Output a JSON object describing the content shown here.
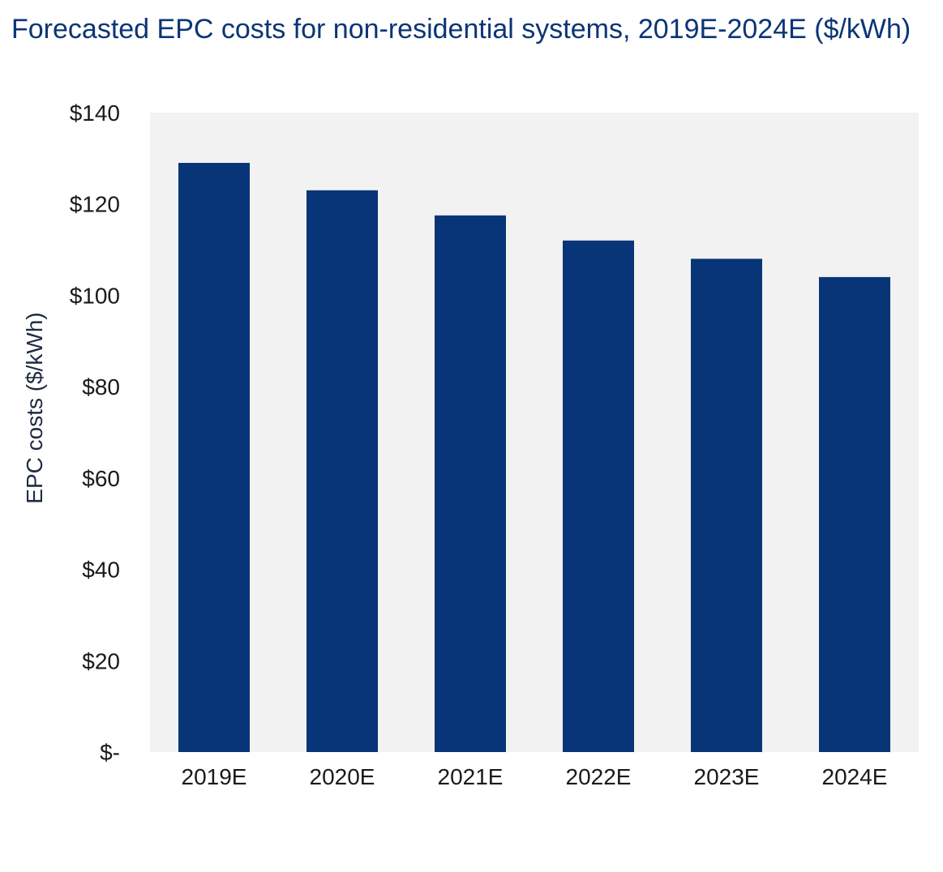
{
  "chart_data": {
    "type": "bar",
    "title": "Forecasted EPC costs for non-residential systems, 2019E-2024E ($/kWh)",
    "xlabel": "",
    "ylabel": "EPC costs ($/kWh)",
    "categories": [
      "2019E",
      "2020E",
      "2021E",
      "2022E",
      "2023E",
      "2024E"
    ],
    "values": [
      129,
      123,
      117.5,
      112,
      108,
      104
    ],
    "ylim": [
      0,
      140
    ],
    "yticks": [
      0,
      20,
      40,
      60,
      80,
      100,
      120,
      140
    ],
    "ytick_labels": [
      "$-",
      "$20",
      "$40",
      "$60",
      "$80",
      "$100",
      "$120",
      "$140"
    ],
    "grid": false,
    "legend": "none",
    "colors": {
      "bar": "#083577",
      "plot_background": "#f2f2f2",
      "title": "#0b3576"
    }
  }
}
